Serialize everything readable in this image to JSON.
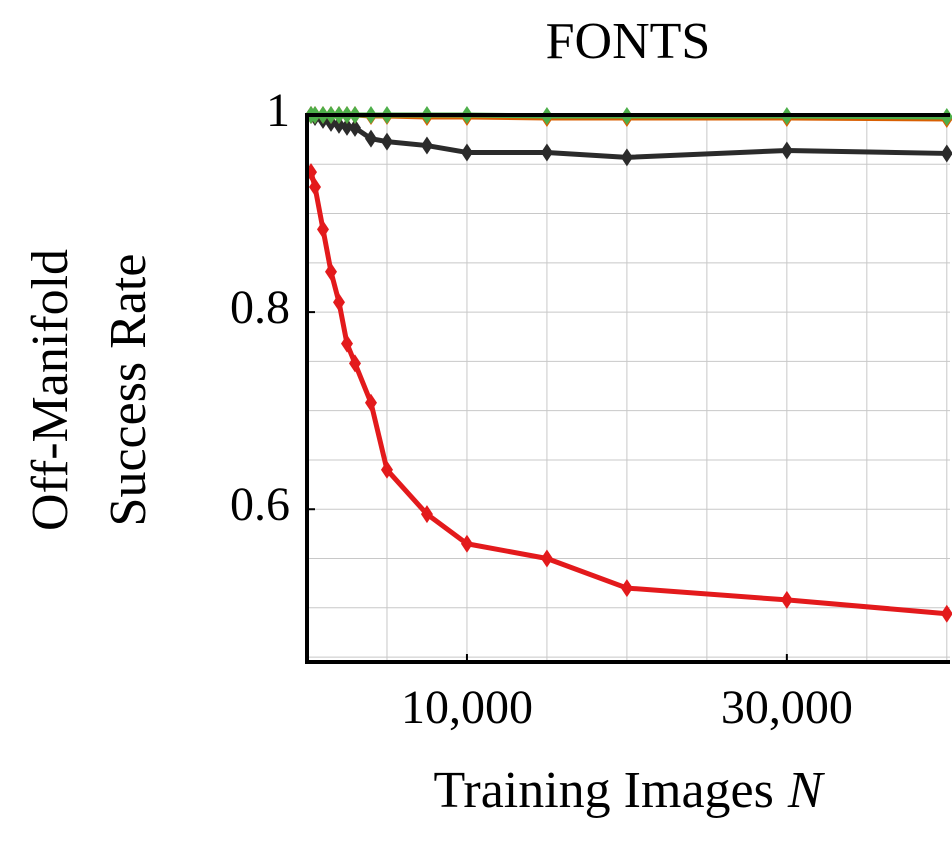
{
  "chart_data": {
    "type": "line",
    "title": "FONTS",
    "xlabel": [
      "Training Images",
      "N"
    ],
    "ylabel": [
      "Off-Manifold",
      "Success Rate"
    ],
    "x": [
      250,
      500,
      1000,
      1500,
      2000,
      2500,
      3000,
      4000,
      5000,
      7500,
      10000,
      15000,
      20000,
      30000,
      40000
    ],
    "series": [
      {
        "color": "#e31a1c",
        "values": [
          0.942,
          0.927,
          0.884,
          0.841,
          0.81,
          0.768,
          0.748,
          0.708,
          0.64,
          0.595,
          0.565,
          0.55,
          0.52,
          0.508,
          0.494
        ]
      },
      {
        "color": "#2b2b2b",
        "values": [
          1.0,
          0.998,
          0.995,
          0.992,
          0.99,
          0.988,
          0.987,
          0.976,
          0.973,
          0.969,
          0.962,
          0.962,
          0.957,
          0.964,
          0.961
        ]
      },
      {
        "color": "#d95f02",
        "values": [
          1.0,
          1.0,
          1.0,
          1.0,
          1.0,
          1.0,
          1.0,
          0.999,
          0.999,
          0.998,
          0.998,
          0.997,
          0.997,
          0.997,
          0.996
        ]
      },
      {
        "color": "#4daf4a",
        "values": [
          1.0,
          1.0,
          1.0,
          1.0,
          1.0,
          1.0,
          1.0,
          1.0,
          1.0,
          1.0,
          1.0,
          0.999,
          0.999,
          0.999,
          0.998
        ]
      }
    ],
    "xlim": [
      0,
      40200
    ],
    "ylim": [
      0.445,
      1
    ],
    "xticks": [
      {
        "value": 10000,
        "label": "10,000"
      },
      {
        "value": 30000,
        "label": "30,000"
      }
    ],
    "yticks": [
      0.6,
      0.8,
      1
    ],
    "xgrid": [
      5000,
      10000,
      15000,
      20000,
      25000,
      30000,
      35000,
      40000
    ],
    "ygrid": [
      0.45,
      0.5,
      0.55,
      0.6,
      0.65,
      0.7,
      0.75,
      0.8,
      0.85,
      0.9,
      0.95
    ],
    "grid": true
  }
}
